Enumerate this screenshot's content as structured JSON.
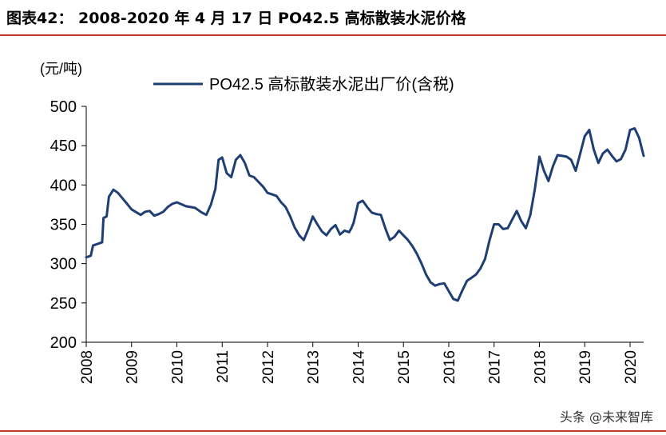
{
  "figure": {
    "title": "图表42：  2008-2020 年 4 月 17 日 PO42.5 高标散装水泥价格",
    "watermark": "头条 @未来智库"
  },
  "chart_data": {
    "type": "line",
    "title": "",
    "ylabel": "(元/吨)",
    "xlabel": "",
    "ylim": [
      200,
      500
    ],
    "xlim": [
      2008,
      2020.3
    ],
    "yticks": [
      200,
      250,
      300,
      350,
      400,
      450,
      500
    ],
    "xticks": [
      "2008",
      "2009",
      "2010",
      "2011",
      "2012",
      "2013",
      "2014",
      "2015",
      "2016",
      "2017",
      "2018",
      "2019",
      "2020"
    ],
    "legend_position": "top",
    "grid": false,
    "series": [
      {
        "name": "PO42.5 高标散装水泥出厂价(含税)",
        "color": "#1f3e73",
        "x": [
          2008.0,
          2008.1,
          2008.15,
          2008.2,
          2008.35,
          2008.38,
          2008.45,
          2008.5,
          2008.6,
          2008.7,
          2008.8,
          2008.9,
          2009.0,
          2009.2,
          2009.3,
          2009.4,
          2009.5,
          2009.6,
          2009.7,
          2009.8,
          2009.9,
          2010.0,
          2010.2,
          2010.4,
          2010.55,
          2010.65,
          2010.75,
          2010.85,
          2010.92,
          2011.0,
          2011.1,
          2011.2,
          2011.3,
          2011.4,
          2011.5,
          2011.6,
          2011.7,
          2011.8,
          2011.9,
          2012.0,
          2012.1,
          2012.2,
          2012.3,
          2012.4,
          2012.5,
          2012.6,
          2012.7,
          2012.8,
          2012.9,
          2013.0,
          2013.1,
          2013.2,
          2013.3,
          2013.4,
          2013.5,
          2013.6,
          2013.7,
          2013.8,
          2013.85,
          2013.9,
          2014.0,
          2014.1,
          2014.2,
          2014.3,
          2014.4,
          2014.5,
          2014.6,
          2014.7,
          2014.8,
          2014.9,
          2015.0,
          2015.1,
          2015.2,
          2015.3,
          2015.4,
          2015.5,
          2015.6,
          2015.7,
          2015.8,
          2015.9,
          2016.0,
          2016.1,
          2016.2,
          2016.3,
          2016.4,
          2016.5,
          2016.6,
          2016.7,
          2016.8,
          2016.9,
          2017.0,
          2017.1,
          2017.2,
          2017.3,
          2017.4,
          2017.5,
          2017.6,
          2017.7,
          2017.8,
          2017.9,
          2018.0,
          2018.1,
          2018.2,
          2018.3,
          2018.4,
          2018.5,
          2018.6,
          2018.7,
          2018.8,
          2018.9,
          2019.0,
          2019.1,
          2019.2,
          2019.3,
          2019.4,
          2019.5,
          2019.6,
          2019.7,
          2019.8,
          2019.9,
          2020.0,
          2020.1,
          2020.2,
          2020.3
        ],
        "values": [
          308,
          310,
          323,
          324,
          327,
          358,
          360,
          385,
          394,
          390,
          383,
          376,
          369,
          362,
          366,
          367,
          361,
          363,
          366,
          372,
          376,
          378,
          373,
          371,
          365,
          362,
          375,
          395,
          432,
          435,
          415,
          410,
          432,
          438,
          428,
          412,
          410,
          404,
          398,
          390,
          388,
          386,
          378,
          372,
          360,
          346,
          336,
          330,
          344,
          360,
          350,
          341,
          336,
          344,
          349,
          337,
          342,
          340,
          345,
          352,
          377,
          380,
          372,
          365,
          363,
          362,
          345,
          330,
          334,
          342,
          336,
          330,
          322,
          312,
          300,
          286,
          276,
          272,
          274,
          275,
          265,
          255,
          253,
          266,
          278,
          282,
          286,
          294,
          306,
          330,
          350,
          350,
          344,
          345,
          356,
          367,
          354,
          345,
          362,
          395,
          436,
          418,
          405,
          424,
          438,
          437,
          436,
          432,
          418,
          440,
          462,
          470,
          445,
          428,
          440,
          445,
          437,
          430,
          433,
          445,
          470,
          472,
          460,
          437
        ]
      }
    ]
  }
}
